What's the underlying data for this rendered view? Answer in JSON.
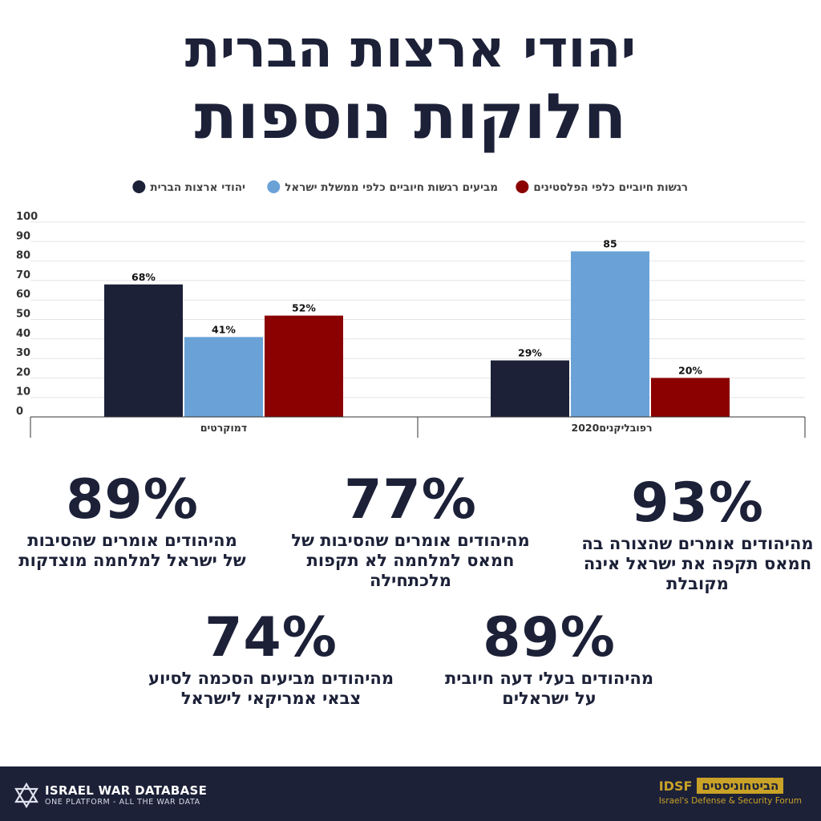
{
  "title_line1": "יהודי ארצות הברית",
  "title_line2": "חלוקות נוספות",
  "chart_data": {
    "type": "bar",
    "title": "",
    "xlabel": "",
    "ylabel": "",
    "ylim": [
      0,
      100
    ],
    "y_ticks": [
      "0",
      "10",
      "20",
      "30",
      "40",
      "50",
      "60",
      "70",
      "80",
      "90",
      "100"
    ],
    "grid": true,
    "legend_position": "top",
    "categories": [
      "דמוקרטים",
      "רפובליקנים2020"
    ],
    "series": [
      {
        "name": "יהודי ארצות הברית",
        "color": "#1c2138",
        "values": [
          68,
          29
        ],
        "labels": [
          "68%",
          "29%"
        ]
      },
      {
        "name": "מביעים רגשות חיוביים כלפי ממשלת ישראל",
        "color": "#6aa2d8",
        "values": [
          41,
          85
        ],
        "labels": [
          "41%",
          "85"
        ]
      },
      {
        "name": "רגשות חיוביים כלפי הפלסטינים",
        "color": "#8b0000",
        "values": [
          52,
          20
        ],
        "labels": [
          "52%",
          "20%"
        ]
      }
    ]
  },
  "stats": [
    {
      "value": "89%",
      "text": "מהיהודים אומרים שהסיבות של ישראל למלחמה מוצדקות"
    },
    {
      "value": "77%",
      "text": "מהיהודים אומרים שהסיבות של חמאס למלחמה לא תקפות מלכתחילה"
    },
    {
      "value": "93%",
      "text": "מהיהודים אומרים שהצורה בה חמאס תקפה את ישראל אינה מקובלת"
    },
    {
      "value": "74%",
      "text": "מהיהודים מביעים הסכמה לסיוע צבאי אמריקאי לישראל"
    },
    {
      "value": "89%",
      "text": "מהיהודים בעלי דעה חיובית על ישראלים"
    }
  ],
  "footer": {
    "left_name": "ISRAEL WAR DATABASE",
    "left_tagline": "ONE PLATFORM - ALL THE WAR DATA",
    "right_abbr": "IDSF",
    "right_hebrew": "הביטחוניסטים",
    "right_english": "Israel's Defense & Security Forum",
    "logo_icon": "star-of-david-icon"
  },
  "colors": {
    "navy": "#1c2138",
    "blue": "#6aa2d8",
    "red": "#8b0000",
    "gold": "#c9a227"
  }
}
